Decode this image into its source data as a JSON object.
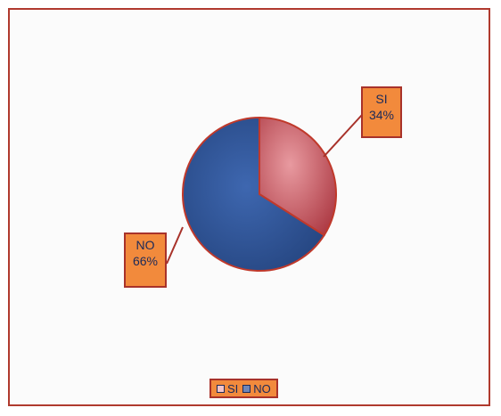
{
  "chart_data": {
    "type": "pie",
    "categories": [
      "SI",
      "NO"
    ],
    "values": [
      34,
      66
    ],
    "value_labels": [
      "34%",
      "66%"
    ],
    "colors": [
      "#b8454f",
      "#2f4f8f"
    ],
    "legend": {
      "position": "bottom",
      "entries": [
        "SI",
        "NO"
      ]
    }
  },
  "frame": {
    "border_color": "#b03a2e",
    "label_box_color": "#f28a3c"
  }
}
